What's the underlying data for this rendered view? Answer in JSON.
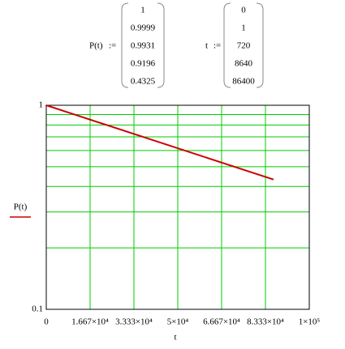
{
  "definitions": [
    {
      "lhs": "P(t)",
      "op": ":="
    },
    {
      "lhs": "t",
      "op": ":="
    }
  ],
  "chart_data": {
    "type": "line",
    "log_y": true,
    "grid": true,
    "x_label": "t",
    "x": [
      0,
      1,
      720,
      8640,
      86400
    ],
    "series": [
      {
        "name": "P(t)",
        "color": "#cc0000",
        "values": [
          1,
          0.9999,
          0.9931,
          0.9196,
          0.4325
        ]
      }
    ],
    "xlim": [
      0,
      100000
    ],
    "xticks": [
      0,
      {
        "value": 16667,
        "label": "1.667×10⁴"
      },
      {
        "value": 33333,
        "label": "3.333×10⁴"
      },
      {
        "value": 50000,
        "label": "5×10⁴"
      },
      {
        "value": 66667,
        "label": "6.667×10⁴"
      },
      {
        "value": 83333,
        "label": "8.333×10⁴"
      },
      {
        "value": 100000,
        "label": "1×10⁵"
      }
    ],
    "ylim": [
      0.1,
      1
    ],
    "yticks": [
      0.1,
      1
    ],
    "minor_yticks": [
      0.2,
      0.3,
      0.4,
      0.5,
      0.6,
      0.7,
      0.8,
      0.9
    ],
    "grid_color": "#00cc00"
  }
}
